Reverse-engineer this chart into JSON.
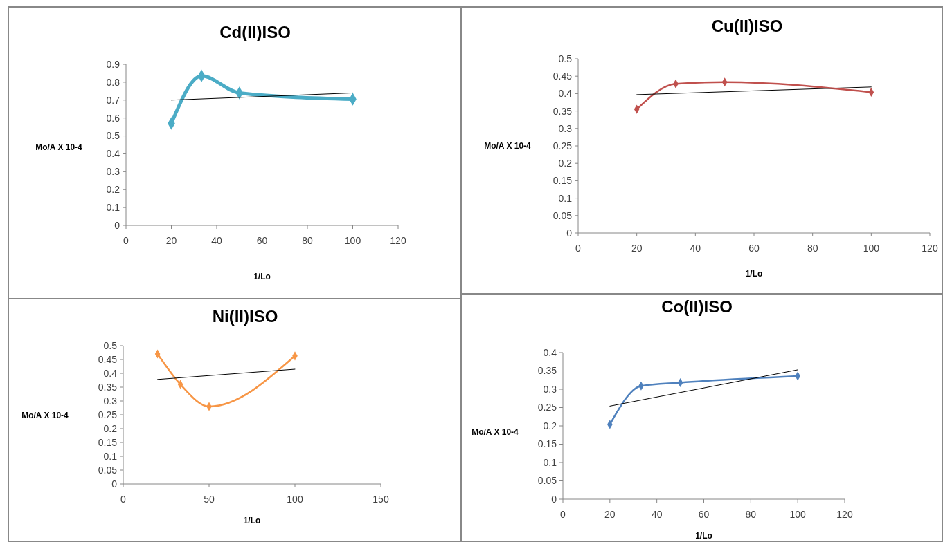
{
  "chart_data": [
    {
      "type": "line",
      "title": "Cd(II)ISO",
      "xlabel": "1/Lo",
      "ylabel": "Mo/A X 10-4",
      "xlim": [
        0,
        120
      ],
      "xticks": [
        0,
        20,
        40,
        60,
        80,
        100,
        120
      ],
      "ylim": [
        0,
        0.9
      ],
      "yticks": [
        0,
        0.1,
        0.2,
        0.3,
        0.4,
        0.5,
        0.6,
        0.7,
        0.8,
        0.9
      ],
      "grid": false,
      "series": [
        {
          "x": [
            20,
            33.3,
            50,
            100
          ],
          "values": [
            0.57,
            0.835,
            0.74,
            0.705
          ],
          "color": "#4bacc6",
          "marker": "diamond"
        },
        {
          "x": [
            20,
            100
          ],
          "values": [
            0.7,
            0.74
          ],
          "color": "#000000",
          "marker": "none"
        }
      ]
    },
    {
      "type": "line",
      "title": "Cu(II)ISO",
      "xlabel": "1/Lo",
      "ylabel": "Mo/A X 10-4",
      "xlim": [
        0,
        120
      ],
      "xticks": [
        0,
        20,
        40,
        60,
        80,
        100,
        120
      ],
      "ylim": [
        0,
        0.5
      ],
      "yticks": [
        0,
        0.05,
        0.1,
        0.15,
        0.2,
        0.25,
        0.3,
        0.35,
        0.4,
        0.45,
        0.5
      ],
      "grid": false,
      "series": [
        {
          "x": [
            20,
            33.3,
            50,
            100
          ],
          "values": [
            0.355,
            0.428,
            0.433,
            0.404
          ],
          "color": "#c0504d",
          "marker": "diamond"
        },
        {
          "x": [
            20,
            100
          ],
          "values": [
            0.397,
            0.419
          ],
          "color": "#000000",
          "marker": "none"
        }
      ]
    },
    {
      "type": "line",
      "title": "Ni(II)ISO",
      "xlabel": "1/Lo",
      "ylabel": "Mo/A X 10-4",
      "xlim": [
        0,
        150
      ],
      "xticks": [
        0,
        50,
        100,
        150
      ],
      "ylim": [
        0,
        0.5
      ],
      "yticks": [
        0,
        0.05,
        0.1,
        0.15,
        0.2,
        0.25,
        0.3,
        0.35,
        0.4,
        0.45,
        0.5
      ],
      "grid": false,
      "series": [
        {
          "x": [
            20,
            33.3,
            50,
            100
          ],
          "values": [
            0.47,
            0.36,
            0.28,
            0.463
          ],
          "color": "#f79646",
          "marker": "diamond"
        },
        {
          "x": [
            20,
            100
          ],
          "values": [
            0.378,
            0.415
          ],
          "color": "#000000",
          "marker": "none"
        }
      ]
    },
    {
      "type": "line",
      "title": "Co(II)ISO",
      "xlabel": "1/Lo",
      "ylabel": "Mo/A X 10-4",
      "xlim": [
        0,
        120
      ],
      "xticks": [
        0,
        20,
        40,
        60,
        80,
        100,
        120
      ],
      "ylim": [
        0,
        0.4
      ],
      "yticks": [
        0,
        0.05,
        0.1,
        0.15,
        0.2,
        0.25,
        0.3,
        0.35,
        0.4
      ],
      "grid": false,
      "series": [
        {
          "x": [
            20,
            33.3,
            50,
            100
          ],
          "values": [
            0.204,
            0.309,
            0.318,
            0.336
          ],
          "color": "#4f81bd",
          "marker": "diamond"
        },
        {
          "x": [
            20,
            100
          ],
          "values": [
            0.254,
            0.353
          ],
          "color": "#000000",
          "marker": "none"
        }
      ]
    }
  ]
}
